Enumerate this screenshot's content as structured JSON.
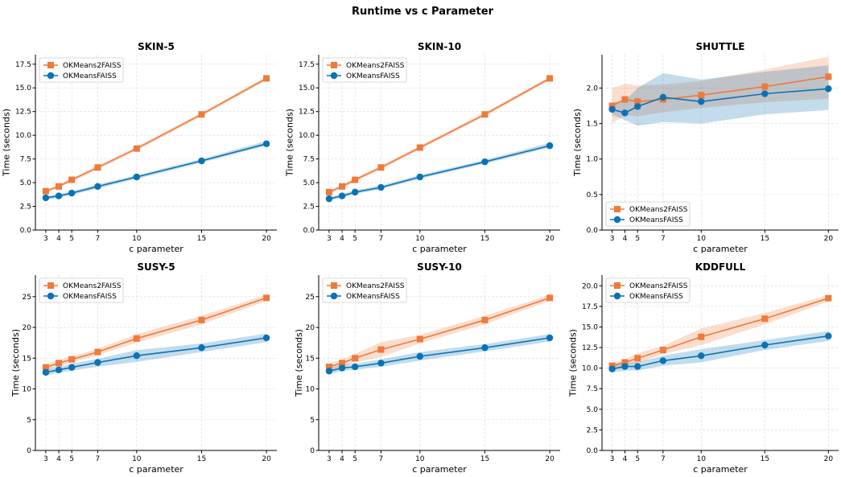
{
  "figure_title": "Runtime vs c Parameter",
  "colors": {
    "OKMeans2FAISS": "#ee7a3b",
    "OKMeansFAISS": "#0a72b5"
  },
  "chart_data": [
    {
      "type": "line",
      "title": "SKIN-5",
      "xlabel": "c parameter",
      "ylabel": "Time (seconds)",
      "x": [
        3,
        4,
        5,
        7,
        10,
        15,
        20
      ],
      "xticks": [
        3,
        4,
        5,
        7,
        10,
        15,
        20
      ],
      "xlim": [
        2.2,
        20.8
      ],
      "ylim": [
        0,
        18.5
      ],
      "yticks": [
        "0.0",
        "2.5",
        "5.0",
        "7.5",
        "10.0",
        "12.5",
        "15.0",
        "17.5"
      ],
      "legend": "upper-left",
      "grid": true,
      "series": [
        {
          "name": "OKMeans2FAISS",
          "marker": "square",
          "values": [
            4.1,
            4.6,
            5.3,
            6.6,
            8.6,
            12.2,
            16.0
          ],
          "lower": [
            3.95,
            4.45,
            5.1,
            6.4,
            8.4,
            12.0,
            15.8
          ],
          "upper": [
            4.3,
            4.8,
            5.5,
            6.8,
            8.8,
            12.4,
            16.2
          ]
        },
        {
          "name": "OKMeansFAISS",
          "marker": "circle",
          "values": [
            3.4,
            3.6,
            3.9,
            4.6,
            5.6,
            7.3,
            9.1
          ],
          "lower": [
            3.2,
            3.4,
            3.7,
            4.4,
            5.4,
            7.1,
            8.9
          ],
          "upper": [
            3.6,
            3.8,
            4.1,
            4.8,
            5.8,
            7.5,
            9.4
          ]
        }
      ]
    },
    {
      "type": "line",
      "title": "SKIN-10",
      "xlabel": "c parameter",
      "ylabel": "Time (seconds)",
      "x": [
        3,
        4,
        5,
        7,
        10,
        15,
        20
      ],
      "xticks": [
        3,
        4,
        5,
        7,
        10,
        15,
        20
      ],
      "xlim": [
        2.2,
        20.8
      ],
      "ylim": [
        0,
        18.5
      ],
      "yticks": [
        "0.0",
        "2.5",
        "5.0",
        "7.5",
        "10.0",
        "12.5",
        "15.0",
        "17.5"
      ],
      "legend": "upper-left",
      "grid": true,
      "series": [
        {
          "name": "OKMeans2FAISS",
          "marker": "square",
          "values": [
            4.0,
            4.6,
            5.3,
            6.6,
            8.7,
            12.2,
            16.0
          ],
          "lower": [
            3.8,
            4.4,
            5.1,
            6.4,
            8.5,
            12.0,
            15.8
          ],
          "upper": [
            4.2,
            4.8,
            5.5,
            6.8,
            8.9,
            12.4,
            16.2
          ]
        },
        {
          "name": "OKMeansFAISS",
          "marker": "circle",
          "values": [
            3.3,
            3.6,
            4.0,
            4.5,
            5.6,
            7.2,
            8.9
          ],
          "lower": [
            3.1,
            3.4,
            3.8,
            4.3,
            5.4,
            7.0,
            8.7
          ],
          "upper": [
            3.5,
            3.8,
            4.2,
            4.7,
            5.8,
            7.4,
            9.2
          ]
        }
      ]
    },
    {
      "type": "line",
      "title": "SHUTTLE",
      "xlabel": "c parameter",
      "ylabel": "Time (seconds)",
      "x": [
        3,
        4,
        5,
        7,
        10,
        15,
        20
      ],
      "xticks": [
        3,
        4,
        5,
        7,
        10,
        15,
        20
      ],
      "xlim": [
        2.2,
        20.8
      ],
      "ylim": [
        0,
        2.47
      ],
      "yticks": [
        "0.0",
        "0.5",
        "1.0",
        "1.5",
        "2.0"
      ],
      "legend": "lower-left",
      "grid": true,
      "series": [
        {
          "name": "OKMeans2FAISS",
          "marker": "square",
          "values": [
            1.75,
            1.84,
            1.81,
            1.84,
            1.9,
            2.02,
            2.16
          ],
          "lower": [
            1.5,
            1.62,
            1.6,
            1.66,
            1.72,
            1.8,
            1.85
          ],
          "upper": [
            2.0,
            2.06,
            2.04,
            2.05,
            2.1,
            2.26,
            2.44
          ]
        },
        {
          "name": "OKMeansFAISS",
          "marker": "circle",
          "values": [
            1.7,
            1.65,
            1.74,
            1.87,
            1.81,
            1.92,
            1.99
          ],
          "lower": [
            1.62,
            1.55,
            1.47,
            1.52,
            1.5,
            1.63,
            1.69
          ],
          "upper": [
            1.8,
            1.82,
            2.0,
            2.21,
            2.12,
            2.23,
            2.32
          ]
        }
      ]
    },
    {
      "type": "line",
      "title": "SUSY-5",
      "xlabel": "c parameter",
      "ylabel": "Time (seconds)",
      "x": [
        3,
        4,
        5,
        7,
        10,
        15,
        20
      ],
      "xticks": [
        3,
        4,
        5,
        7,
        10,
        15,
        20
      ],
      "xlim": [
        2.2,
        20.8
      ],
      "ylim": [
        0,
        28.5
      ],
      "yticks": [
        "0",
        "5",
        "10",
        "15",
        "20",
        "25"
      ],
      "legend": "upper-left",
      "grid": true,
      "series": [
        {
          "name": "OKMeans2FAISS",
          "marker": "square",
          "values": [
            13.5,
            14.2,
            14.8,
            16.0,
            18.2,
            21.2,
            24.8
          ],
          "lower": [
            13.0,
            13.7,
            14.3,
            15.5,
            17.5,
            20.5,
            24.3
          ],
          "upper": [
            14.0,
            14.7,
            15.3,
            16.5,
            18.9,
            21.9,
            25.3
          ]
        },
        {
          "name": "OKMeansFAISS",
          "marker": "circle",
          "values": [
            12.7,
            13.1,
            13.5,
            14.3,
            15.4,
            16.7,
            18.3
          ],
          "lower": [
            12.2,
            12.6,
            13.0,
            13.6,
            14.4,
            16.0,
            17.6
          ],
          "upper": [
            13.2,
            13.6,
            14.1,
            14.9,
            16.3,
            17.4,
            19.0
          ]
        }
      ]
    },
    {
      "type": "line",
      "title": "SUSY-10",
      "xlabel": "c parameter",
      "ylabel": "Time (seconds)",
      "x": [
        3,
        4,
        5,
        7,
        10,
        15,
        20
      ],
      "xticks": [
        3,
        4,
        5,
        7,
        10,
        15,
        20
      ],
      "xlim": [
        2.2,
        20.8
      ],
      "ylim": [
        0,
        28.5
      ],
      "yticks": [
        "0",
        "5",
        "10",
        "15",
        "20",
        "25"
      ],
      "legend": "upper-left",
      "grid": true,
      "series": [
        {
          "name": "OKMeans2FAISS",
          "marker": "square",
          "values": [
            13.6,
            14.2,
            15.0,
            16.4,
            18.1,
            21.2,
            24.8
          ],
          "lower": [
            13.1,
            13.6,
            14.3,
            15.2,
            17.4,
            20.5,
            24.3
          ],
          "upper": [
            14.1,
            14.8,
            15.7,
            17.6,
            18.8,
            21.9,
            25.3
          ]
        },
        {
          "name": "OKMeansFAISS",
          "marker": "circle",
          "values": [
            12.9,
            13.4,
            13.6,
            14.2,
            15.3,
            16.7,
            18.3
          ],
          "lower": [
            12.4,
            12.9,
            13.1,
            13.6,
            14.6,
            16.1,
            17.7
          ],
          "upper": [
            13.4,
            13.9,
            14.1,
            14.8,
            16.0,
            17.3,
            18.9
          ]
        }
      ]
    },
    {
      "type": "line",
      "title": "KDDFULL",
      "xlabel": "c parameter",
      "ylabel": "Time (seconds)",
      "x": [
        3,
        4,
        5,
        7,
        10,
        15,
        20
      ],
      "xticks": [
        3,
        4,
        5,
        7,
        10,
        15,
        20
      ],
      "xlim": [
        2.2,
        20.8
      ],
      "ylim": [
        0,
        21.3
      ],
      "yticks": [
        "0.0",
        "2.5",
        "5.0",
        "7.5",
        "10.0",
        "12.5",
        "15.0",
        "17.5",
        "20.0"
      ],
      "legend": "upper-left",
      "grid": true,
      "series": [
        {
          "name": "OKMeans2FAISS",
          "marker": "square",
          "values": [
            10.3,
            10.7,
            11.2,
            12.2,
            13.8,
            16.0,
            18.5
          ],
          "lower": [
            10.0,
            10.3,
            10.6,
            11.7,
            12.8,
            15.3,
            18.1
          ],
          "upper": [
            10.6,
            11.1,
            11.8,
            12.7,
            14.8,
            16.7,
            18.9
          ]
        },
        {
          "name": "OKMeansFAISS",
          "marker": "circle",
          "values": [
            9.9,
            10.2,
            10.2,
            10.9,
            11.5,
            12.8,
            13.9
          ],
          "lower": [
            9.5,
            9.7,
            9.7,
            10.3,
            10.7,
            12.2,
            13.3
          ],
          "upper": [
            10.3,
            10.7,
            10.7,
            11.5,
            12.3,
            13.4,
            14.5
          ]
        }
      ]
    }
  ]
}
